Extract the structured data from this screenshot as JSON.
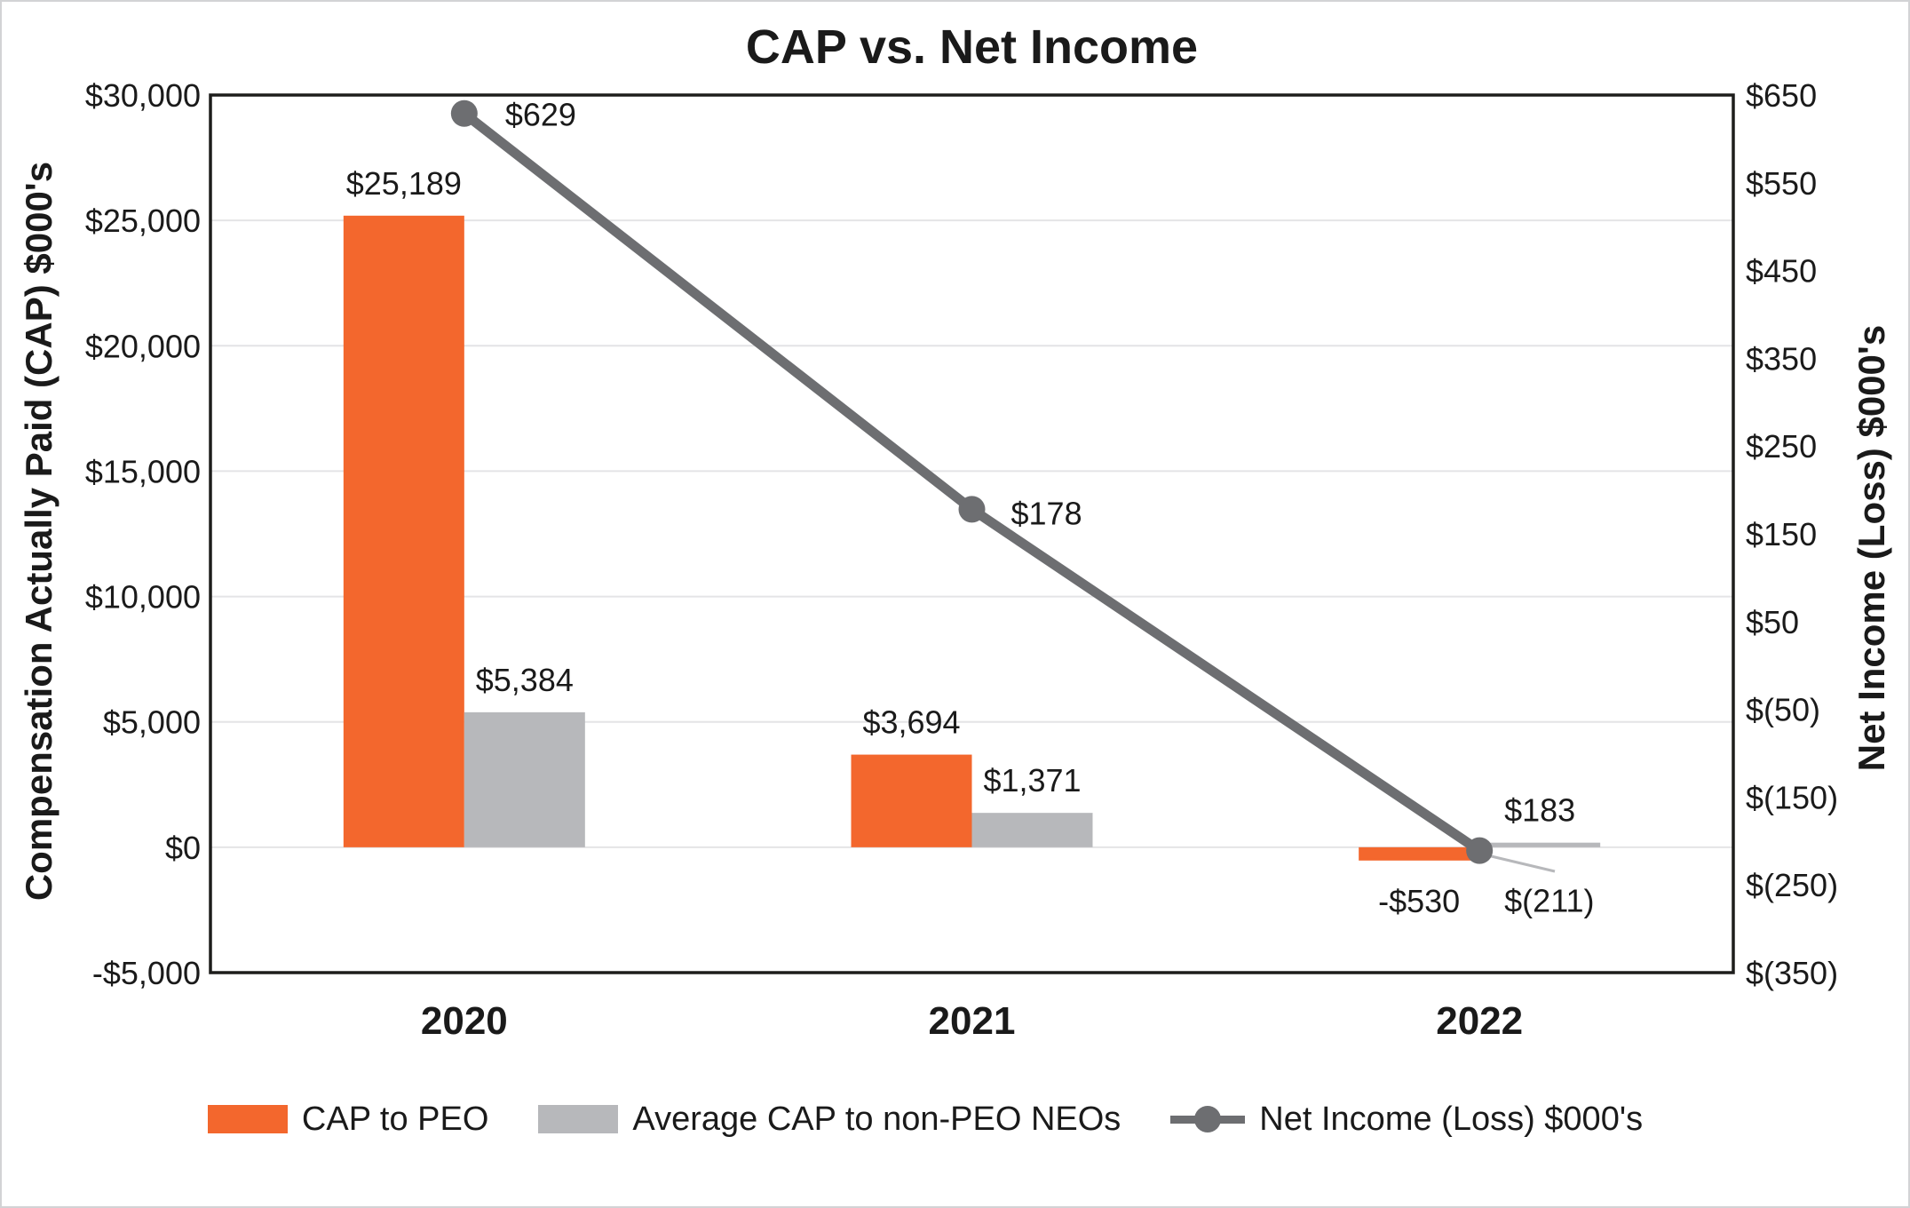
{
  "chart_data": {
    "type": "combo",
    "title": "CAP vs. Net Income",
    "categories": [
      "2020",
      "2021",
      "2022"
    ],
    "series": [
      {
        "name": "CAP to PEO",
        "type": "bar",
        "axis": "left",
        "color": "#F3672D",
        "values": [
          25189,
          3694,
          -530
        ],
        "data_labels": [
          "$25,189",
          "$3,694",
          "-$530"
        ]
      },
      {
        "name": "Average CAP to non-PEO NEOs",
        "type": "bar",
        "axis": "left",
        "color": "#B7B8BB",
        "values": [
          5384,
          1371,
          183
        ],
        "data_labels": [
          "$5,384",
          "$1,371",
          "$183"
        ]
      },
      {
        "name": "Net Income (Loss) $000's",
        "type": "line",
        "axis": "right",
        "color": "#6D6E71",
        "values": [
          629,
          178,
          -211
        ],
        "data_labels": [
          "$629",
          "$178",
          "$(211)"
        ]
      }
    ],
    "left_axis": {
      "title": "Compensation Actually Paid (CAP) $000's",
      "min": -5000,
      "max": 30000,
      "step": 5000,
      "ticks": [
        {
          "label": "$30,000",
          "value": 30000
        },
        {
          "label": "$25,000",
          "value": 25000
        },
        {
          "label": "$20,000",
          "value": 20000
        },
        {
          "label": "$15,000",
          "value": 15000
        },
        {
          "label": "$10,000",
          "value": 10000
        },
        {
          "label": "$5,000",
          "value": 5000
        },
        {
          "label": "$0",
          "value": 0
        },
        {
          "label": "-$5,000",
          "value": -5000
        }
      ]
    },
    "right_axis": {
      "title": "Net Income (Loss) $000's",
      "min": -350,
      "max": 650,
      "step": 100,
      "ticks": [
        {
          "label": "$650",
          "value": 650
        },
        {
          "label": "$550",
          "value": 550
        },
        {
          "label": "$450",
          "value": 450
        },
        {
          "label": "$350",
          "value": 350
        },
        {
          "label": "$250",
          "value": 250
        },
        {
          "label": "$150",
          "value": 150
        },
        {
          "label": "$50",
          "value": 50
        },
        {
          "label": "$(50)",
          "value": -50
        },
        {
          "label": "$(150)",
          "value": -150
        },
        {
          "label": "$(250)",
          "value": -250
        },
        {
          "label": "$(350)",
          "value": -350
        }
      ]
    },
    "grid": "horizontal",
    "legend_position": "bottom"
  },
  "colors": {
    "gridline": "#E4E4E6",
    "frame": "#1D1D1B",
    "text": "#1A1A1A",
    "leader_line": "#B7B8BB",
    "background": "#FFFFFF",
    "page_border": "#D2D3D5"
  }
}
